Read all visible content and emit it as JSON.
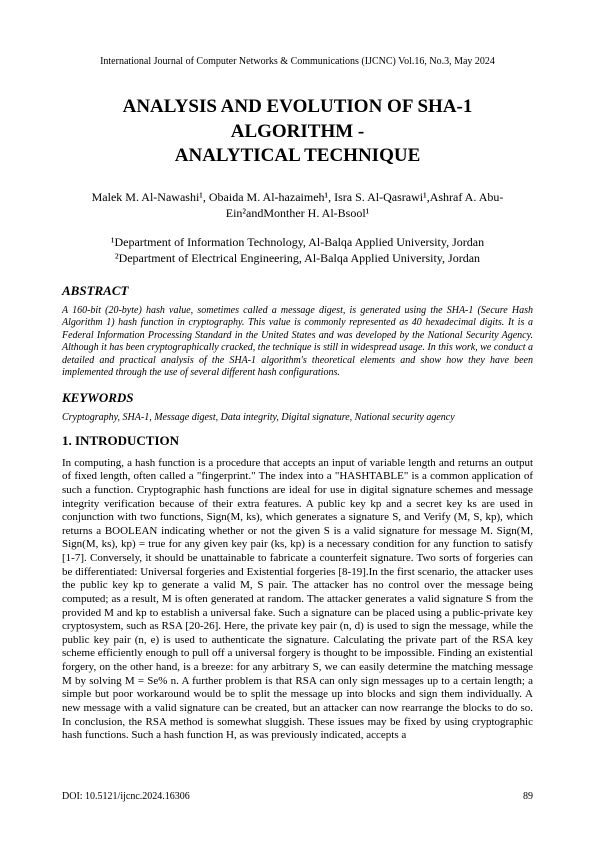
{
  "journal_header": "International Journal of Computer Networks & Communications (IJCNC) Vol.16, No.3, May 2024",
  "title_line1": "ANALYSIS AND EVOLUTION OF SHA-1 ALGORITHM -",
  "title_line2": "ANALYTICAL TECHNIQUE",
  "authors_html": "Malek M. Al-Nawashi¹, Obaida M. Al-hazaimeh¹, Isra S. Al-Qasrawi¹,Ashraf A. Abu-Ein²andMonther H. Al-Bsool¹",
  "affil1": "¹Department of Information Technology, Al-Balqa Applied University, Jordan",
  "affil2": "²Department of Electrical Engineering, Al-Balqa Applied University, Jordan",
  "abstract_label": "ABSTRACT",
  "abstract_text": "A 160-bit (20-byte) hash value, sometimes called a message digest, is generated using the SHA-1 (Secure Hash Algorithm 1) hash function in cryptography. This value is commonly represented as 40 hexadecimal digits. It is a Federal Information Processing Standard in the United States and was developed by the National Security Agency. Although it has been cryptographically cracked, the technique is still in widespread usage. In this work, we conduct a detailed and practical analysis of the SHA-1 algorithm's theoretical elements and show how they have been implemented through the use of several different hash configurations.",
  "keywords_label": "KEYWORDS",
  "keywords_text": "Cryptography, SHA-1, Message digest, Data integrity, Digital signature, National security agency",
  "intro_label": "1. INTRODUCTION",
  "intro_text": "In computing, a hash function is a procedure that accepts an input of variable length and returns an output of fixed length, often called a \"fingerprint.\" The index into a \"HASHTABLE\" is a common application of such a function. Cryptographic hash functions are ideal for use in digital signature schemes and message integrity verification because of their extra features. A public key kp and a secret key ks are used in conjunction with two functions, Sign(M, ks), which generates a signature S, and Verify (M, S, kp), which returns a BOOLEAN indicating whether or not the given S is a valid signature for message M. Sign(M, Sign(M, ks), kp) = true for any given key pair (ks, kp) is a necessary condition for any function to satisfy [1-7]. Conversely, it should be unattainable to fabricate a counterfeit signature.  Two sorts of forgeries can be differentiated: Universal forgeries and Existential forgeries [8-19].In the first scenario, the attacker uses the public key kp to generate a valid M, S pair. The attacker has no control over the message being computed; as a result, M is often generated at random. The attacker generates a valid signature S from the provided M and kp to establish a universal fake. Such a signature can be placed using a public-private key cryptosystem, such as RSA [20-26]. Here, the private key pair (n, d) is used to sign the message, while the public key pair (n, e) is used to authenticate the signature. Calculating the private part of the RSA key scheme efficiently enough to pull off a universal forgery is thought to be impossible. Finding an existential forgery, on the other hand, is a breeze: for any arbitrary S, we can easily determine the matching message M by solving M = Se% n. A further problem is that RSA can only sign messages up to a certain length; a simple but poor workaround would be to split the message up into blocks and sign them individually. A new message with a valid signature can be created, but an attacker can now rearrange the blocks to do so. In conclusion, the RSA method is somewhat sluggish. These issues may be fixed by using cryptographic hash functions. Such a hash function H, as was previously indicated, accepts a",
  "doi": "DOI: 10.5121/ijcnc.2024.16306",
  "page_number": "89"
}
